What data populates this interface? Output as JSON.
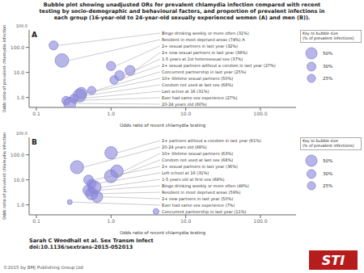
{
  "title": "Bubble plot showing unadjusted ORs for prevalent chlamydia infection compared with recent\ntesting by socio-demographic and behavioural factors, and proportion of prevalent infections in\neach group (16-year-old to 24-year-old sexually experienced women (A) and men (B)).",
  "annotations": [
    {
      "text": "Sarah C Woodhall et al. Sex Transm Infect\ndoi:10.1136/sextrans-2015-052013"
    },
    {
      "text": "©2015 by BMJ Publishing Group Ltd"
    },
    {
      "text": "STI",
      "color": "#b71c1c"
    }
  ],
  "chart_data": [
    {
      "type": "scatter",
      "title": "A",
      "xlabel": "Odds ratio of recent chlamydia testing",
      "ylabel": "Odds ratio of prevalent chlamydia infection",
      "log": true,
      "grid": false,
      "color": "#8884d8",
      "xlim": [
        0.08,
        300
      ],
      "ylim": [
        0.4,
        500
      ],
      "xticks": [
        0.1,
        {
          "value": 1,
          "label": "1.0"
        },
        {
          "value": 10,
          "label": "10.0"
        },
        {
          "value": 100,
          "label": "100.0"
        }
      ],
      "yticks": [
        {
          "value": 1,
          "label": "1.0"
        },
        {
          "value": 10,
          "label": "10.0"
        },
        {
          "value": 100,
          "label": "100.0"
        }
      ],
      "annotations": [
        {
          "text": "100.0"
        }
      ],
      "size_key": {
        "title": "Key to bubble size\n(% of prevalent infections)",
        "sizes": [
          50,
          30,
          25
        ],
        "labels": [
          "50%",
          "30%",
          "25%"
        ]
      },
      "x": [
        0.17,
        0.22,
        1.0,
        1.8,
        1.3,
        1.1,
        0.55,
        0.4,
        0.38,
        0.32,
        0.25,
        0.28
      ],
      "values": [
        120.0,
        30.0,
        18.0,
        12.0,
        7.5,
        5.0,
        1.9,
        1.5,
        1.2,
        0.9,
        0.75,
        0.58
      ],
      "sizes": [
        31,
        74,
        32,
        38,
        37,
        27,
        25,
        50,
        68,
        31,
        27,
        60
      ],
      "point_labels": [
        "Binge drinking weekly or more often (31%)",
        "Resident in most deprived areas (74%) A",
        "2+ sexual partners in last year (32%)",
        "2+ new sexual partners in last year (38%)",
        "1-5 years at 1st heterosexual sex (37%)",
        "2+ sexual partners without a condom in last year (27%)",
        "Concurrent partnership in last year (25%)",
        "10+ lifetime sexual partners (50%)",
        "Condom not used at last sex (68%)",
        "Last active at 16 (31%)",
        "Ever had same sex experience (27%)",
        "20-24 years old (60%)"
      ]
    },
    {
      "type": "scatter",
      "title": "B",
      "xlabel": "Odds ratio of recent chlamydia testing",
      "ylabel": "Odds ratio of prevalent chlamydia infection",
      "log": true,
      "grid": false,
      "color": "#8884d8",
      "xlim": [
        0.08,
        300
      ],
      "ylim": [
        0.4,
        500
      ],
      "xticks": [
        0.1,
        {
          "value": 1,
          "label": "1.0"
        },
        {
          "value": 10,
          "label": "10.0"
        },
        {
          "value": 100,
          "label": "100.0"
        }
      ],
      "yticks": [
        {
          "value": 1,
          "label": "1.0"
        },
        {
          "value": 10,
          "label": "10.0"
        },
        {
          "value": 100,
          "label": "100.0"
        }
      ],
      "annotations": [
        {
          "text": "100.0"
        }
      ],
      "size_key": {
        "title": "Key to bubble size\n(% of prevalent infections)",
        "sizes": [
          50,
          30,
          25
        ],
        "labels": [
          "50%",
          "30%",
          "25%"
        ]
      },
      "x": [
        1.0,
        0.35,
        1.2,
        1.0,
        0.5,
        0.55,
        0.6,
        0.5,
        0.55,
        0.65,
        0.28,
        4.0
      ],
      "values": [
        120.0,
        32.0,
        22.0,
        14.0,
        10.0,
        7.0,
        5.0,
        3.8,
        2.8,
        2.1,
        1.3,
        0.55
      ],
      "sizes": [
        61,
        68,
        63,
        68,
        36,
        31,
        69,
        49,
        59,
        50,
        7,
        11
      ],
      "point_labels": [
        "2+ partners without a condom in last year (61%)",
        "20-24 years old (68%)",
        "10+ lifetime sexual partners (63%)",
        "Condom not used at last sex (68%)",
        "2+ sexual partners in last year (36%)",
        "Left school at 16 (31%)",
        "1-5 years old at first sex (69%)",
        "Binge drinking weekly or more often (49%)",
        "Resident in most deprived areas (59%)",
        "2+ new partners in last year (50%)",
        "Ever had same sex experience (7%)",
        "Concurrent partnership in last year (11%)"
      ]
    }
  ]
}
